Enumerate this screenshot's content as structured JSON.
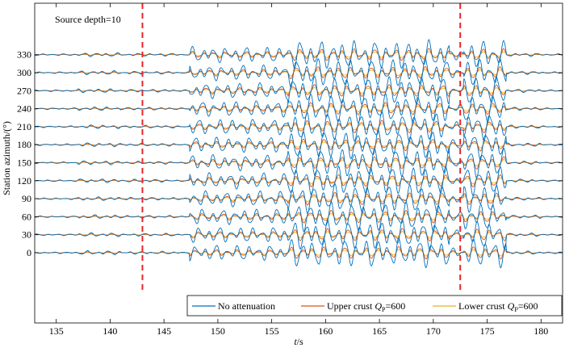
{
  "chart_data": {
    "type": "line",
    "annotation": "Source depth=10",
    "xlabel": "t/s",
    "xlabel_italic": "t",
    "xlabel_unit": "/s",
    "ylabel": "Station azimuth/(°)",
    "xlim": [
      133,
      182
    ],
    "xticks": [
      "135",
      "140",
      "145",
      "150",
      "155",
      "160",
      "165",
      "170",
      "175",
      "180"
    ],
    "yticks": [
      "0",
      "30",
      "60",
      "90",
      "120",
      "150",
      "180",
      "210",
      "240",
      "270",
      "300",
      "330"
    ],
    "markers": [
      {
        "t": 143.0,
        "style": "dashed",
        "color": "#e8262a"
      },
      {
        "t": 172.5,
        "style": "dashed",
        "color": "#e8262a"
      }
    ],
    "series": [
      {
        "name": "No attenuation",
        "color": "#0072bd"
      },
      {
        "name": "Upper crust Qp=600",
        "label_prefix": "Upper crust ",
        "label_q": "Q",
        "label_sub": "P",
        "label_suffix": "=600",
        "color": "#d95319"
      },
      {
        "name": "Lower crust Qp=600",
        "label_prefix": "Lower crust ",
        "label_q": "Q",
        "label_sub": "P",
        "label_suffix": "=600",
        "color": "#edb120"
      }
    ],
    "legend_position": "bottom-right",
    "grid": false
  }
}
